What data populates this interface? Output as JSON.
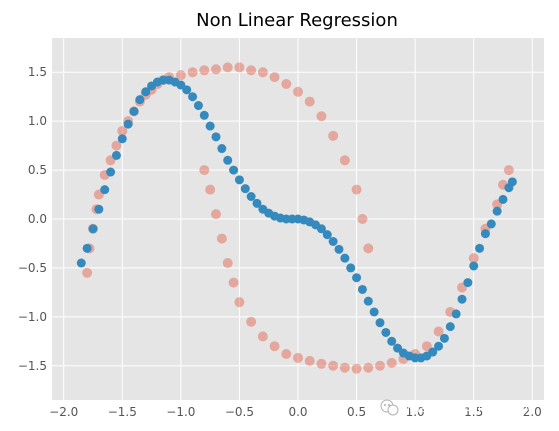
{
  "chart_data": {
    "type": "scatter",
    "title": "Non Linear Regression",
    "xlabel": "",
    "ylabel": "",
    "xlim": [
      -2.1,
      2.1
    ],
    "ylim": [
      -1.85,
      1.85
    ],
    "x_ticks": [
      -2.0,
      -1.5,
      -1.0,
      -0.5,
      0.0,
      0.5,
      1.0,
      1.5,
      2.0
    ],
    "x_tick_labels": [
      "−2.0",
      "−1.5",
      "−1.0",
      "−0.5",
      "0.0",
      "0.5",
      "1.0",
      "1.5",
      "2.0"
    ],
    "y_ticks": [
      -1.5,
      -1.0,
      -0.5,
      0.0,
      0.5,
      1.0,
      1.5
    ],
    "y_tick_labels": [
      "−1.5",
      "−1.0",
      "−0.5",
      "0.0",
      "0.5",
      "1.0",
      "1.5"
    ],
    "grid": true,
    "style": "ggplot",
    "series": [
      {
        "kind": "scatter-noisy-data",
        "color": "#e24a33",
        "opacity": 0.4,
        "points": [
          [
            -1.8,
            -0.55
          ],
          [
            -1.78,
            -0.3
          ],
          [
            -1.75,
            -0.1
          ],
          [
            -1.72,
            0.1
          ],
          [
            -1.7,
            0.25
          ],
          [
            -1.65,
            0.45
          ],
          [
            -1.6,
            0.6
          ],
          [
            -1.55,
            0.75
          ],
          [
            -1.5,
            0.9
          ],
          [
            -1.45,
            1.0
          ],
          [
            -1.4,
            1.1
          ],
          [
            -1.35,
            1.2
          ],
          [
            -1.3,
            1.27
          ],
          [
            -1.25,
            1.32
          ],
          [
            -1.2,
            1.38
          ],
          [
            -1.15,
            1.42
          ],
          [
            -1.1,
            1.45
          ],
          [
            -1.0,
            1.47
          ],
          [
            -0.9,
            1.5
          ],
          [
            -0.8,
            1.52
          ],
          [
            -0.7,
            1.53
          ],
          [
            -0.6,
            1.55
          ],
          [
            -0.5,
            1.55
          ],
          [
            -0.4,
            1.52
          ],
          [
            -0.3,
            1.5
          ],
          [
            -0.2,
            1.45
          ],
          [
            -0.1,
            1.38
          ],
          [
            0.0,
            1.3
          ],
          [
            0.1,
            1.2
          ],
          [
            0.2,
            1.05
          ],
          [
            0.3,
            0.85
          ],
          [
            0.4,
            0.6
          ],
          [
            0.5,
            0.3
          ],
          [
            0.55,
            0.0
          ],
          [
            0.6,
            -0.3
          ],
          [
            -0.8,
            0.5
          ],
          [
            -0.75,
            0.3
          ],
          [
            -0.7,
            0.05
          ],
          [
            -0.65,
            -0.2
          ],
          [
            -0.6,
            -0.45
          ],
          [
            -0.55,
            -0.65
          ],
          [
            -0.5,
            -0.85
          ],
          [
            -0.4,
            -1.05
          ],
          [
            -0.3,
            -1.2
          ],
          [
            -0.2,
            -1.3
          ],
          [
            -0.1,
            -1.38
          ],
          [
            0.0,
            -1.42
          ],
          [
            0.1,
            -1.45
          ],
          [
            0.2,
            -1.48
          ],
          [
            0.3,
            -1.5
          ],
          [
            0.4,
            -1.52
          ],
          [
            0.5,
            -1.53
          ],
          [
            0.6,
            -1.52
          ],
          [
            0.7,
            -1.5
          ],
          [
            0.8,
            -1.47
          ],
          [
            0.9,
            -1.43
          ],
          [
            1.0,
            -1.38
          ],
          [
            1.1,
            -1.3
          ],
          [
            1.2,
            -1.15
          ],
          [
            1.3,
            -0.95
          ],
          [
            1.4,
            -0.7
          ],
          [
            1.5,
            -0.4
          ],
          [
            1.6,
            -0.1
          ],
          [
            1.7,
            0.15
          ],
          [
            1.75,
            0.35
          ],
          [
            1.8,
            0.5
          ]
        ]
      },
      {
        "kind": "regression-prediction",
        "color": "#348abd",
        "opacity": 1.0,
        "points": [
          [
            -1.85,
            -0.45
          ],
          [
            -1.8,
            -0.3
          ],
          [
            -1.75,
            -0.1
          ],
          [
            -1.7,
            0.1
          ],
          [
            -1.65,
            0.3
          ],
          [
            -1.6,
            0.48
          ],
          [
            -1.55,
            0.65
          ],
          [
            -1.5,
            0.82
          ],
          [
            -1.45,
            0.97
          ],
          [
            -1.4,
            1.1
          ],
          [
            -1.35,
            1.22
          ],
          [
            -1.3,
            1.3
          ],
          [
            -1.25,
            1.36
          ],
          [
            -1.2,
            1.4
          ],
          [
            -1.15,
            1.42
          ],
          [
            -1.1,
            1.42
          ],
          [
            -1.05,
            1.4
          ],
          [
            -1.0,
            1.37
          ],
          [
            -0.95,
            1.32
          ],
          [
            -0.9,
            1.25
          ],
          [
            -0.85,
            1.16
          ],
          [
            -0.8,
            1.06
          ],
          [
            -0.75,
            0.95
          ],
          [
            -0.7,
            0.84
          ],
          [
            -0.65,
            0.72
          ],
          [
            -0.6,
            0.6
          ],
          [
            -0.55,
            0.5
          ],
          [
            -0.5,
            0.4
          ],
          [
            -0.45,
            0.31
          ],
          [
            -0.4,
            0.23
          ],
          [
            -0.35,
            0.16
          ],
          [
            -0.3,
            0.1
          ],
          [
            -0.25,
            0.06
          ],
          [
            -0.2,
            0.03
          ],
          [
            -0.15,
            0.01
          ],
          [
            -0.1,
            0.0
          ],
          [
            -0.05,
            0.0
          ],
          [
            0.0,
            0.0
          ],
          [
            0.05,
            -0.01
          ],
          [
            0.1,
            -0.03
          ],
          [
            0.15,
            -0.06
          ],
          [
            0.2,
            -0.1
          ],
          [
            0.25,
            -0.16
          ],
          [
            0.3,
            -0.23
          ],
          [
            0.35,
            -0.31
          ],
          [
            0.4,
            -0.4
          ],
          [
            0.45,
            -0.5
          ],
          [
            0.5,
            -0.6
          ],
          [
            0.55,
            -0.72
          ],
          [
            0.6,
            -0.84
          ],
          [
            0.65,
            -0.95
          ],
          [
            0.7,
            -1.06
          ],
          [
            0.75,
            -1.16
          ],
          [
            0.8,
            -1.25
          ],
          [
            0.85,
            -1.32
          ],
          [
            0.9,
            -1.37
          ],
          [
            0.95,
            -1.4
          ],
          [
            1.0,
            -1.42
          ],
          [
            1.05,
            -1.42
          ],
          [
            1.1,
            -1.4
          ],
          [
            1.15,
            -1.36
          ],
          [
            1.2,
            -1.3
          ],
          [
            1.25,
            -1.22
          ],
          [
            1.3,
            -1.1
          ],
          [
            1.35,
            -0.97
          ],
          [
            1.4,
            -0.82
          ],
          [
            1.45,
            -0.65
          ],
          [
            1.5,
            -0.48
          ],
          [
            1.55,
            -0.3
          ],
          [
            1.6,
            -0.15
          ],
          [
            1.65,
            -0.05
          ],
          [
            1.7,
            0.08
          ],
          [
            1.75,
            0.2
          ],
          [
            1.8,
            0.32
          ],
          [
            1.83,
            0.38
          ]
        ]
      }
    ]
  },
  "watermark": {
    "icon": "wechat-icon",
    "text": "微信号: deephub-imba"
  }
}
